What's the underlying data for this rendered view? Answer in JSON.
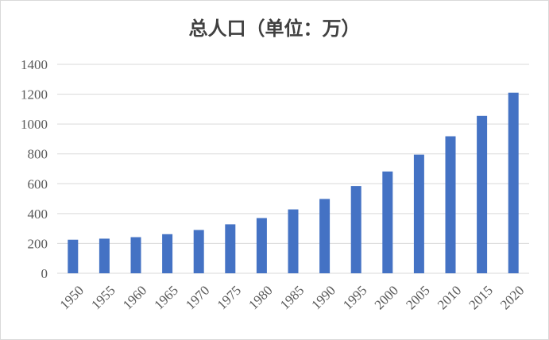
{
  "chart_data": {
    "type": "bar",
    "title": "总人口（单位：万）",
    "xlabel": "",
    "ylabel": "",
    "categories": [
      "1950",
      "1955",
      "1960",
      "1965",
      "1970",
      "1975",
      "1980",
      "1985",
      "1990",
      "1995",
      "2000",
      "2005",
      "2010",
      "2015",
      "2020"
    ],
    "values": [
      225,
      232,
      242,
      262,
      290,
      328,
      370,
      428,
      498,
      585,
      682,
      795,
      918,
      1055,
      1210
    ],
    "ylim": [
      0,
      1400
    ],
    "yticks": [
      "0",
      "200",
      "400",
      "600",
      "800",
      "1000",
      "1200",
      "1400"
    ],
    "grid": true,
    "legend": "none",
    "bar_color": "#4472c4",
    "grid_color": "#d9d9d9"
  }
}
